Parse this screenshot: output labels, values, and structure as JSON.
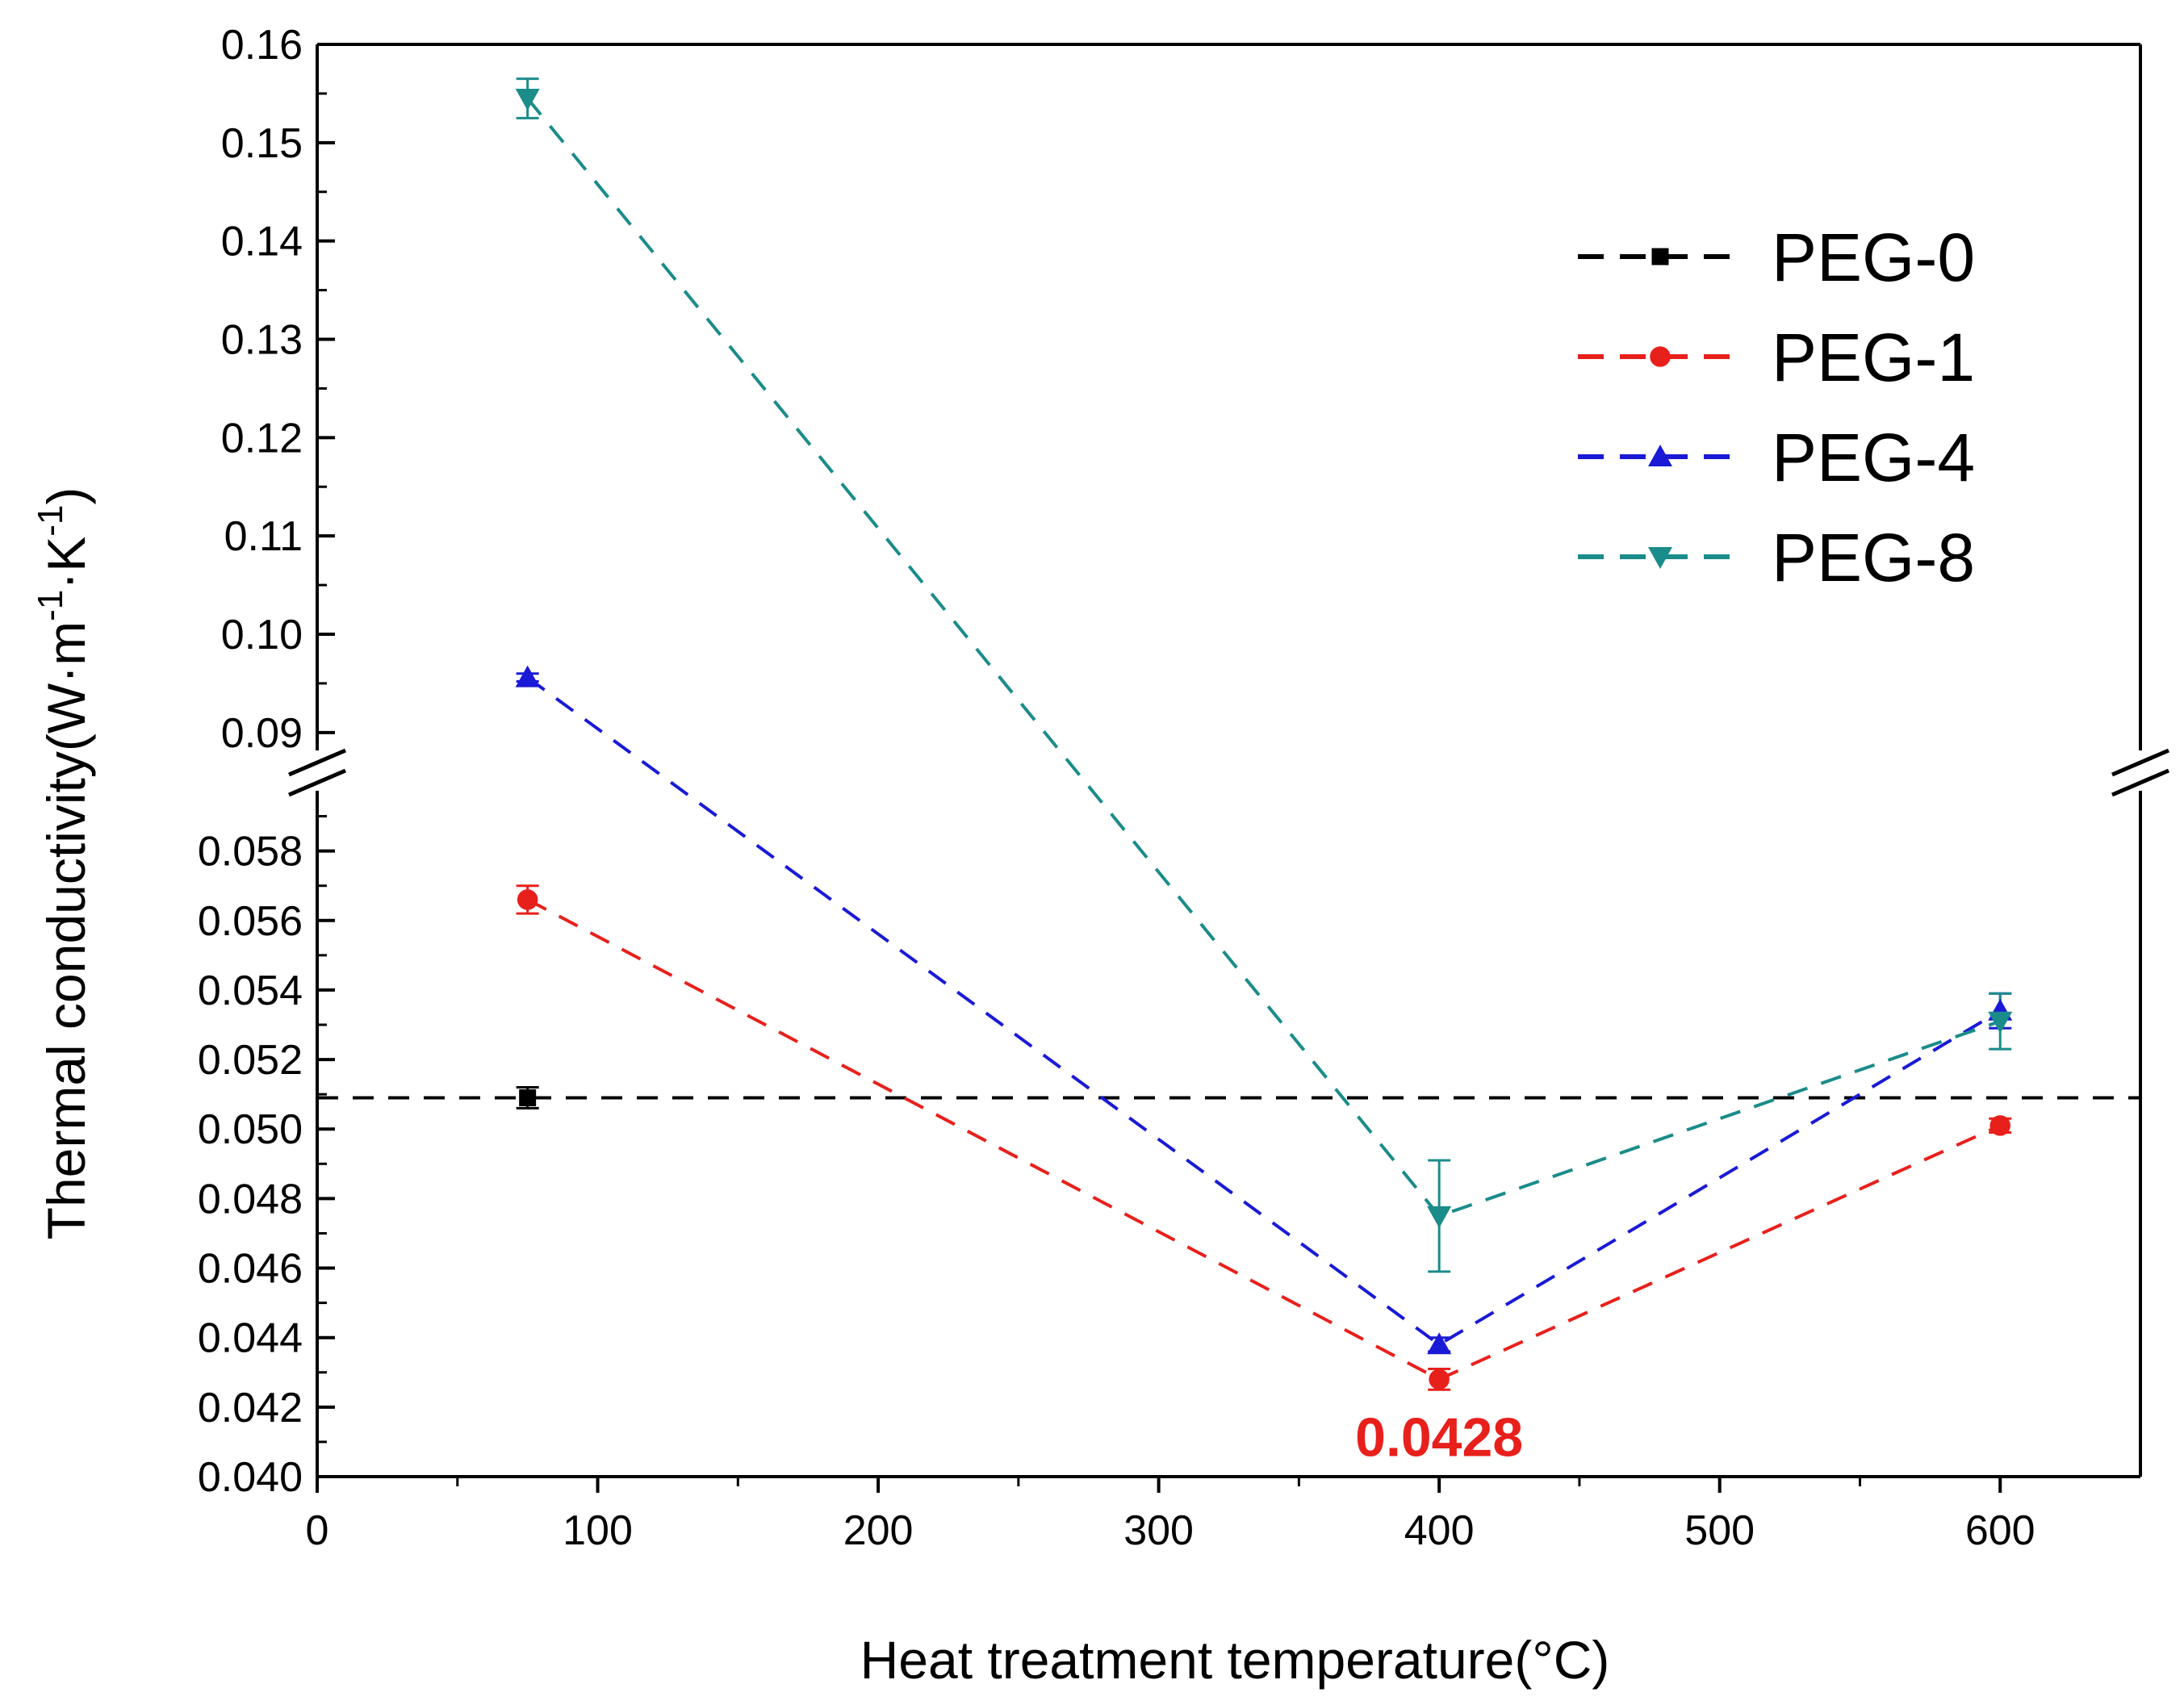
{
  "chart_data": {
    "type": "line",
    "title": "",
    "xlabel": "Heat treatment temperature(°C)",
    "ylabel_main": "Thermal conductivity(W·m",
    "ylabel_sup1": "-1",
    "ylabel_mid": "·K",
    "ylabel_sup2": "-1",
    "ylabel_end": ")",
    "xlim": [
      0,
      650
    ],
    "x_ticks": [
      0,
      100,
      200,
      300,
      400,
      500,
      600
    ],
    "x_tick_labels": [
      "0",
      "100",
      "200",
      "300",
      "400",
      "500",
      "600"
    ],
    "y_segments": {
      "lower": {
        "range": [
          0.04,
          0.0595
        ],
        "ticks": [
          "0.040",
          "0.042",
          "0.044",
          "0.046",
          "0.048",
          "0.050",
          "0.052",
          "0.054",
          "0.056",
          "0.058"
        ]
      },
      "upper": {
        "range": [
          0.089,
          0.16
        ],
        "ticks": [
          "0.09",
          "0.10",
          "0.11",
          "0.12",
          "0.13",
          "0.14",
          "0.15",
          "0.16"
        ]
      }
    },
    "axis_break": "y between 0.0595 and 0.089",
    "legend_position": "top-right",
    "series": [
      {
        "name": "PEG-0",
        "color": "#000000",
        "marker": "square",
        "x": [
          75
        ],
        "y": [
          0.0509
        ],
        "err": [
          0.0003
        ],
        "reference_line": 0.0509
      },
      {
        "name": "PEG-1",
        "color": "#e8201c",
        "marker": "circle",
        "x": [
          75,
          400,
          600
        ],
        "y": [
          0.0566,
          0.0428,
          0.0501
        ],
        "err": [
          0.0004,
          0.0003,
          0.0002
        ]
      },
      {
        "name": "PEG-4",
        "color": "#1a1ad6",
        "marker": "triangle-up",
        "x": [
          75,
          400,
          600
        ],
        "y": [
          0.0956,
          0.0438,
          0.0534
        ],
        "err": [
          0.0004,
          0.0002,
          0.0005
        ]
      },
      {
        "name": "PEG-8",
        "color": "#1a8c8a",
        "marker": "triangle-down",
        "x": [
          75,
          400,
          600
        ],
        "y": [
          0.1545,
          0.0475,
          0.0531
        ],
        "err": [
          0.002,
          0.0016,
          0.0008
        ]
      }
    ],
    "annotations": [
      {
        "text": "0.0428",
        "x": 400,
        "y": 0.0428,
        "color": "#e8201c"
      }
    ]
  }
}
